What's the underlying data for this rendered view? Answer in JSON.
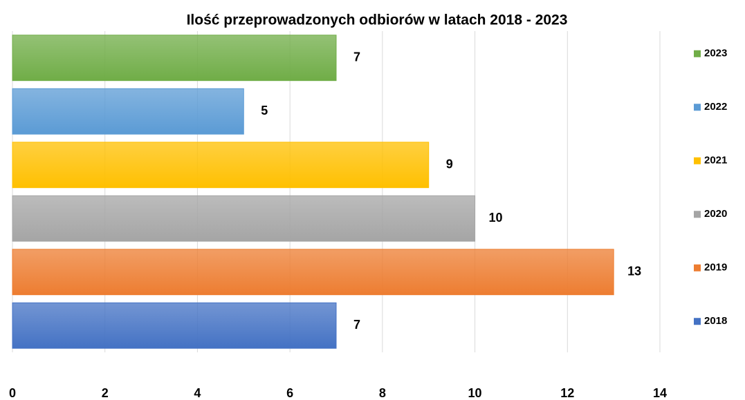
{
  "chart_data": {
    "type": "barh",
    "title": "Ilość przeprowadzonych odbiorów w latach 2018 - 2023",
    "categories": [
      "2018",
      "2019",
      "2020",
      "2021",
      "2022",
      "2023"
    ],
    "values": [
      7,
      13,
      10,
      9,
      5,
      7
    ],
    "colors": [
      "#4472c4",
      "#ed7d31",
      "#a5a5a5",
      "#ffc000",
      "#5b9bd5",
      "#70ad47"
    ],
    "xlim": [
      0,
      14
    ],
    "xticks": [
      0,
      2,
      4,
      6,
      8,
      10,
      12,
      14
    ],
    "grid": true,
    "legend": "right"
  }
}
